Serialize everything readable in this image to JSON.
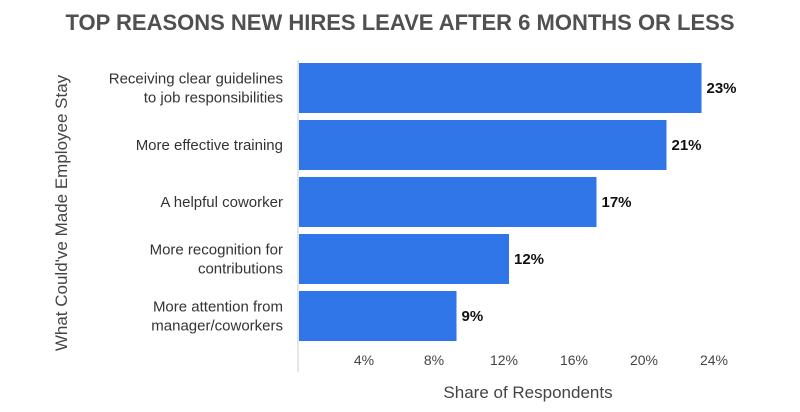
{
  "chart_data": {
    "type": "bar",
    "orientation": "horizontal",
    "title": "TOP REASONS NEW HIRES LEAVE AFTER 6 MONTHS OR LESS",
    "xlabel": "Share of Respondents",
    "ylabel": "What Could've Made Employee Stay",
    "categories": [
      [
        "Receiving clear guidelines",
        "to job responsibilities"
      ],
      [
        "More effective training"
      ],
      [
        "A helpful coworker"
      ],
      [
        "More recognition for",
        "contributions"
      ],
      [
        "More attention from",
        "manager/coworkers"
      ]
    ],
    "values": [
      23,
      21,
      17,
      12,
      9
    ],
    "value_labels": [
      "23%",
      "21%",
      "17%",
      "12%",
      "9%"
    ],
    "xticks": [
      4,
      8,
      12,
      16,
      20,
      24
    ],
    "xtick_labels": [
      "4%",
      "8%",
      "12%",
      "16%",
      "20%",
      "24%"
    ],
    "xlim": [
      0,
      24
    ],
    "grid": false,
    "bar_color": "#3176e8"
  }
}
